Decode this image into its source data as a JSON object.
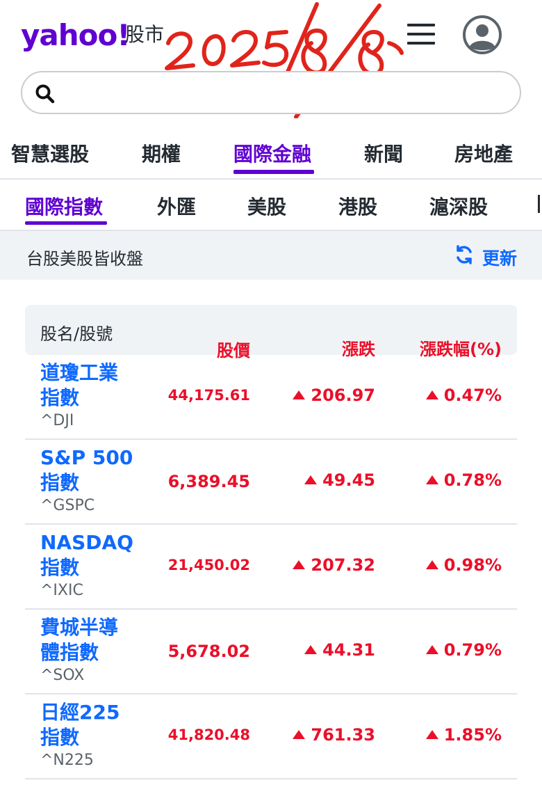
{
  "brand": {
    "logo": "yahoo!",
    "section": "股市"
  },
  "handwriting": "2025/8/8",
  "search": {
    "placeholder": ""
  },
  "nav_primary": [
    "智慧選股",
    "期權",
    "國際金融",
    "新聞",
    "房地產"
  ],
  "nav_primary_active": "國際金融",
  "nav_secondary": [
    "國際指數",
    "外匯",
    "美股",
    "港股",
    "滬深股"
  ],
  "nav_secondary_active": "國際指數",
  "status": {
    "text": "台股美股皆收盤",
    "refresh_label": "更新"
  },
  "table": {
    "headers": {
      "name": "股名/股號",
      "price": "股價",
      "change": "漲跌",
      "change_pct": "漲跌幅(%)"
    },
    "rows": [
      {
        "name_line1": "道瓊工業",
        "name_line2": "指數",
        "symbol": "^DJI",
        "price": "44,175.61",
        "change": "206.97",
        "change_pct": "0.47%",
        "direction": "up"
      },
      {
        "name_line1": "S&P 500",
        "name_line2": "指數",
        "symbol": "^GSPC",
        "price": "6,389.45",
        "change": "49.45",
        "change_pct": "0.78%",
        "direction": "up"
      },
      {
        "name_line1": "NASDAQ",
        "name_line2": "指數",
        "symbol": "^IXIC",
        "price": "21,450.02",
        "change": "207.32",
        "change_pct": "0.98%",
        "direction": "up"
      },
      {
        "name_line1": "費城半導",
        "name_line2": "體指數",
        "symbol": "^SOX",
        "price": "5,678.02",
        "change": "44.31",
        "change_pct": "0.79%",
        "direction": "up"
      },
      {
        "name_line1": "日經225",
        "name_line2": "指數",
        "symbol": "^N225",
        "price": "41,820.48",
        "change": "761.33",
        "change_pct": "1.85%",
        "direction": "up"
      }
    ]
  },
  "colors": {
    "brand": "#6001d2",
    "link": "#0f69ff",
    "up": "#eb0f29",
    "handwriting": "#e0241b"
  }
}
